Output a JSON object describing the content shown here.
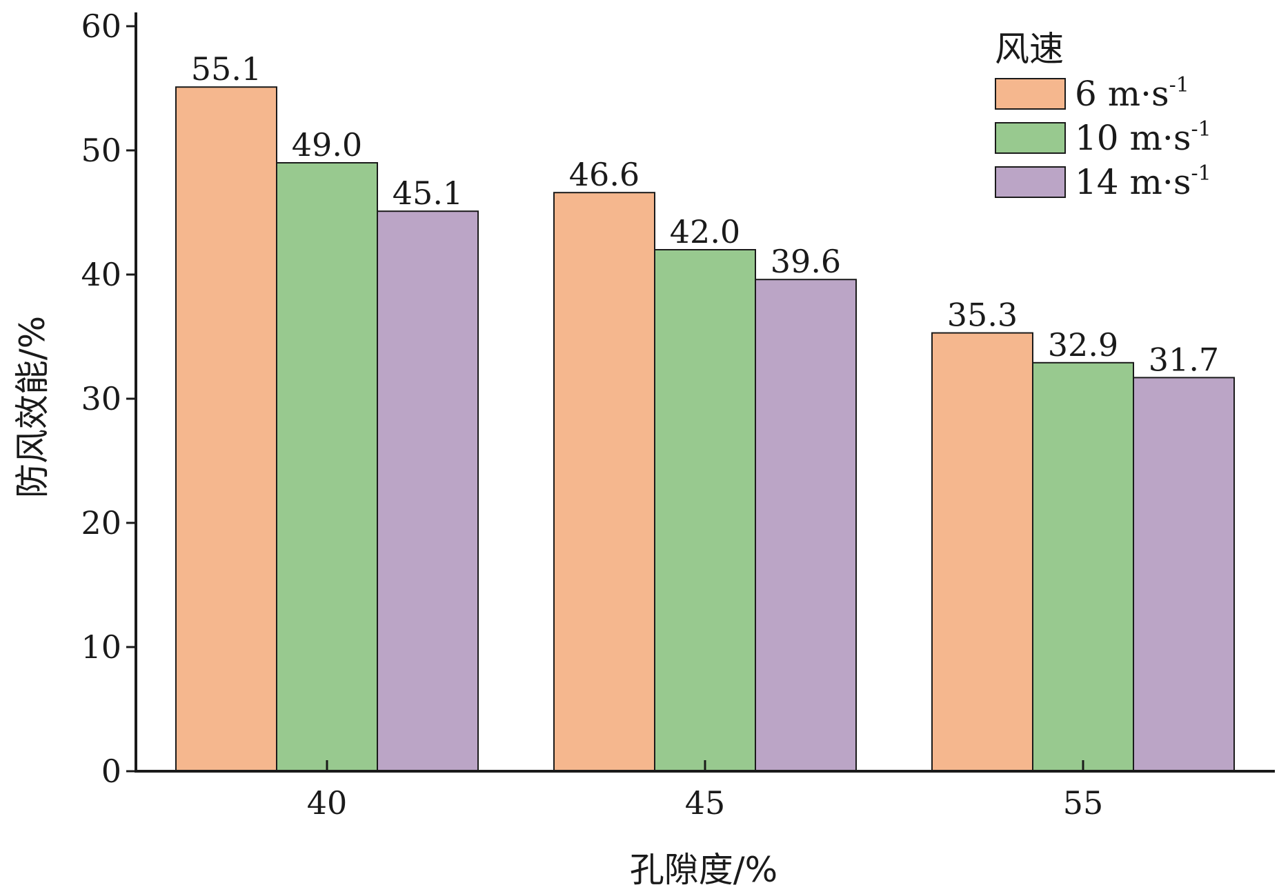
{
  "chart_data": {
    "type": "bar",
    "categories": [
      "40",
      "45",
      "55"
    ],
    "series": [
      {
        "name": "6 m·s",
        "unit_sup": "-1",
        "color": "#f5b78e",
        "values": [
          55.1,
          46.6,
          35.3
        ],
        "labels": [
          "55.1",
          "46.6",
          "35.3"
        ]
      },
      {
        "name": "10 m·s",
        "unit_sup": "-1",
        "color": "#98c98f",
        "values": [
          49.0,
          42.0,
          32.9
        ],
        "labels": [
          "49.0",
          "42.0",
          "32.9"
        ]
      },
      {
        "name": "14 m·s",
        "unit_sup": "-1",
        "color": "#bba5c6",
        "values": [
          45.1,
          39.6,
          31.7
        ],
        "labels": [
          "45.1",
          "39.6",
          "31.7"
        ]
      }
    ],
    "title": "",
    "xlabel": "孔隙度/%",
    "ylabel": "防风效能/%",
    "ylim": [
      0,
      60
    ],
    "yticks": [
      "0",
      "10",
      "20",
      "30",
      "40",
      "50",
      "60"
    ],
    "legend_title": "风速",
    "legend_position": "top-right",
    "grid": false
  }
}
